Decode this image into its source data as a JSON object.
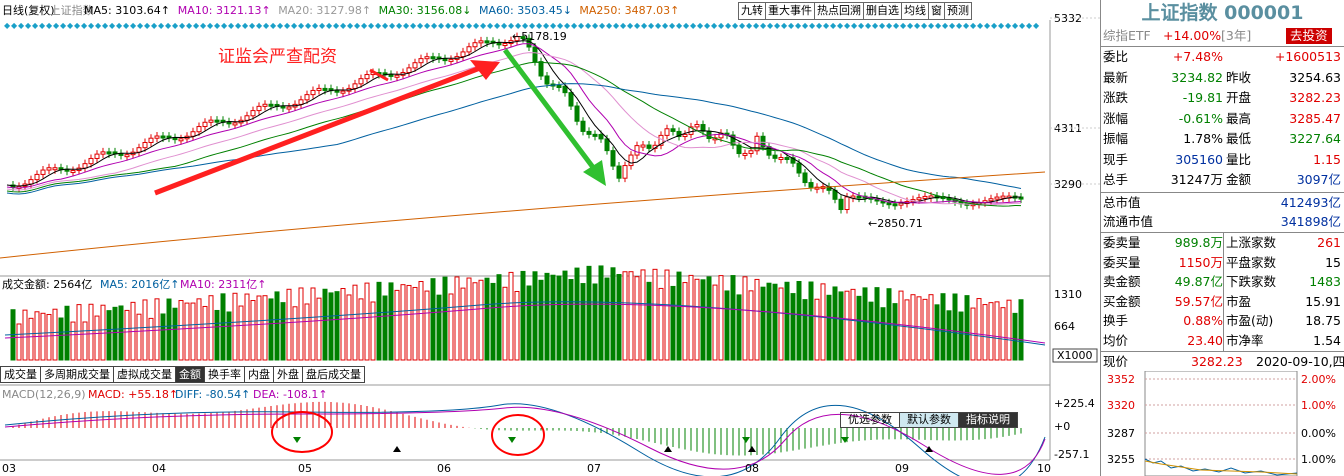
{
  "main_chart": {
    "header_items": [
      {
        "text": "日线(复权)",
        "color": "#000"
      },
      {
        "text": "上证指数",
        "color": "#888"
      },
      {
        "text": "MA5: 3103.64↑",
        "color": "#000"
      },
      {
        "text": "MA10: 3121.13↑",
        "color": "#b000b0"
      },
      {
        "text": "MA20: 3127.98↑",
        "color": "#999"
      },
      {
        "text": "MA30: 3156.08↓",
        "color": "#008000"
      },
      {
        "text": "MA60: 3503.45↓",
        "color": "#0060a0"
      },
      {
        "text": "MA250: 3487.03↑",
        "color": "#d06000"
      }
    ],
    "price_axis": [
      "5332",
      "4311",
      "3290"
    ],
    "annotation_title": "证监会严查配资",
    "high_label": "5178.19",
    "low_label": "2850.71",
    "volume_header": {
      "amount": "成交金额: 2564亿",
      "ma5": "MA5: 2016亿↑",
      "ma10": "MA10: 2311亿↑"
    },
    "volume_axis": [
      "1310",
      "664"
    ],
    "volume_unit": "X1000",
    "macd_header": {
      "name": "MACD(12,26,9)",
      "macd": "MACD: +55.18↑",
      "diff": "DIFF: -80.54↑",
      "dea": "DEA: -108.1↑"
    },
    "macd_axis": [
      "+225.4",
      "+0",
      "-257.1"
    ],
    "date_axis": [
      "03",
      "04",
      "05",
      "06",
      "07",
      "08",
      "09",
      "10"
    ],
    "colors": {
      "up": "#e00000",
      "down": "#008000",
      "ma5": "#000",
      "ma10": "#b000b0",
      "ma20": "#e090d0",
      "ma30": "#008000",
      "ma60": "#0060a0",
      "ma250": "#d06000"
    }
  },
  "toolbar": [
    "九转",
    "重大事件",
    "热点回溯",
    "删自选",
    "均线",
    "窗",
    "预测"
  ],
  "tabs": [
    "成交量",
    "多周期成交量",
    "虚拟成交量",
    "金额",
    "换手率",
    "内盘",
    "外盘",
    "盘后成交量"
  ],
  "active_tab": "金额",
  "param_buttons": [
    "优选参数",
    "默认参数",
    "指标说明"
  ],
  "side": {
    "title": "上证指数 000001",
    "etf_label": "综指ETF",
    "etf_change": "+14.00%",
    "etf_years": "[3年]",
    "etf_button": "去投资",
    "quote_rows": [
      {
        "l1": "委比",
        "v1": "+7.48%",
        "c1": "red",
        "v2": "+1600513",
        "c2": "red"
      },
      {
        "l1": "最新",
        "v1": "3234.82",
        "c1": "green",
        "l2": "昨收",
        "v2": "3254.63",
        "c2": "blk"
      },
      {
        "l1": "涨跌",
        "v1": "-19.81",
        "c1": "green",
        "l2": "开盘",
        "v2": "3282.23",
        "c2": "red"
      },
      {
        "l1": "涨幅",
        "v1": "-0.61%",
        "c1": "green",
        "l2": "最高",
        "v2": "3285.47",
        "c2": "red"
      },
      {
        "l1": "振幅",
        "v1": "1.78%",
        "c1": "blk",
        "l2": "最低",
        "v2": "3227.64",
        "c2": "green"
      },
      {
        "l1": "现手",
        "v1": "305160",
        "c1": "blue",
        "l2": "量比",
        "v2": "1.15",
        "c2": "red"
      },
      {
        "l1": "总手",
        "v1": "31247万",
        "c1": "blk",
        "l2": "金额",
        "v2": "3097亿",
        "c2": "blue"
      }
    ],
    "mktcap_rows": [
      {
        "l": "总市值",
        "v": "412493亿"
      },
      {
        "l": "流通市值",
        "v": "341898亿"
      }
    ],
    "stat_rows": [
      {
        "l1": "委卖量",
        "v1": "989.8万",
        "c1": "green",
        "l2": "上涨家数",
        "v2": "261",
        "c2": "red"
      },
      {
        "l1": "委买量",
        "v1": "1150万",
        "c1": "red",
        "l2": "平盘家数",
        "v2": "15",
        "c2": "blk"
      },
      {
        "l1": "卖金额",
        "v1": "49.87亿",
        "c1": "green",
        "l2": "下跌家数",
        "v2": "1483",
        "c2": "green"
      },
      {
        "l1": "买金额",
        "v1": "59.57亿",
        "c1": "red",
        "l2": "市盈",
        "v2": "15.91",
        "c2": "blk"
      },
      {
        "l1": "换手",
        "v1": "0.88%",
        "c1": "red",
        "l2": "市盈(动)",
        "v2": "18.75",
        "c2": "blk"
      },
      {
        "l1": "均价",
        "v1": "23.40",
        "c1": "red",
        "l2": "市净率",
        "v2": "1.54",
        "c2": "blk"
      }
    ],
    "mini": {
      "label": "现价",
      "price": "3282.23",
      "date": "2020-09-10,四",
      "left_axis": [
        "3352",
        "3320",
        "3287",
        "3255"
      ],
      "right_axis": [
        "2.00%",
        "1.00%",
        "0.00%",
        "1.00%"
      ]
    }
  }
}
